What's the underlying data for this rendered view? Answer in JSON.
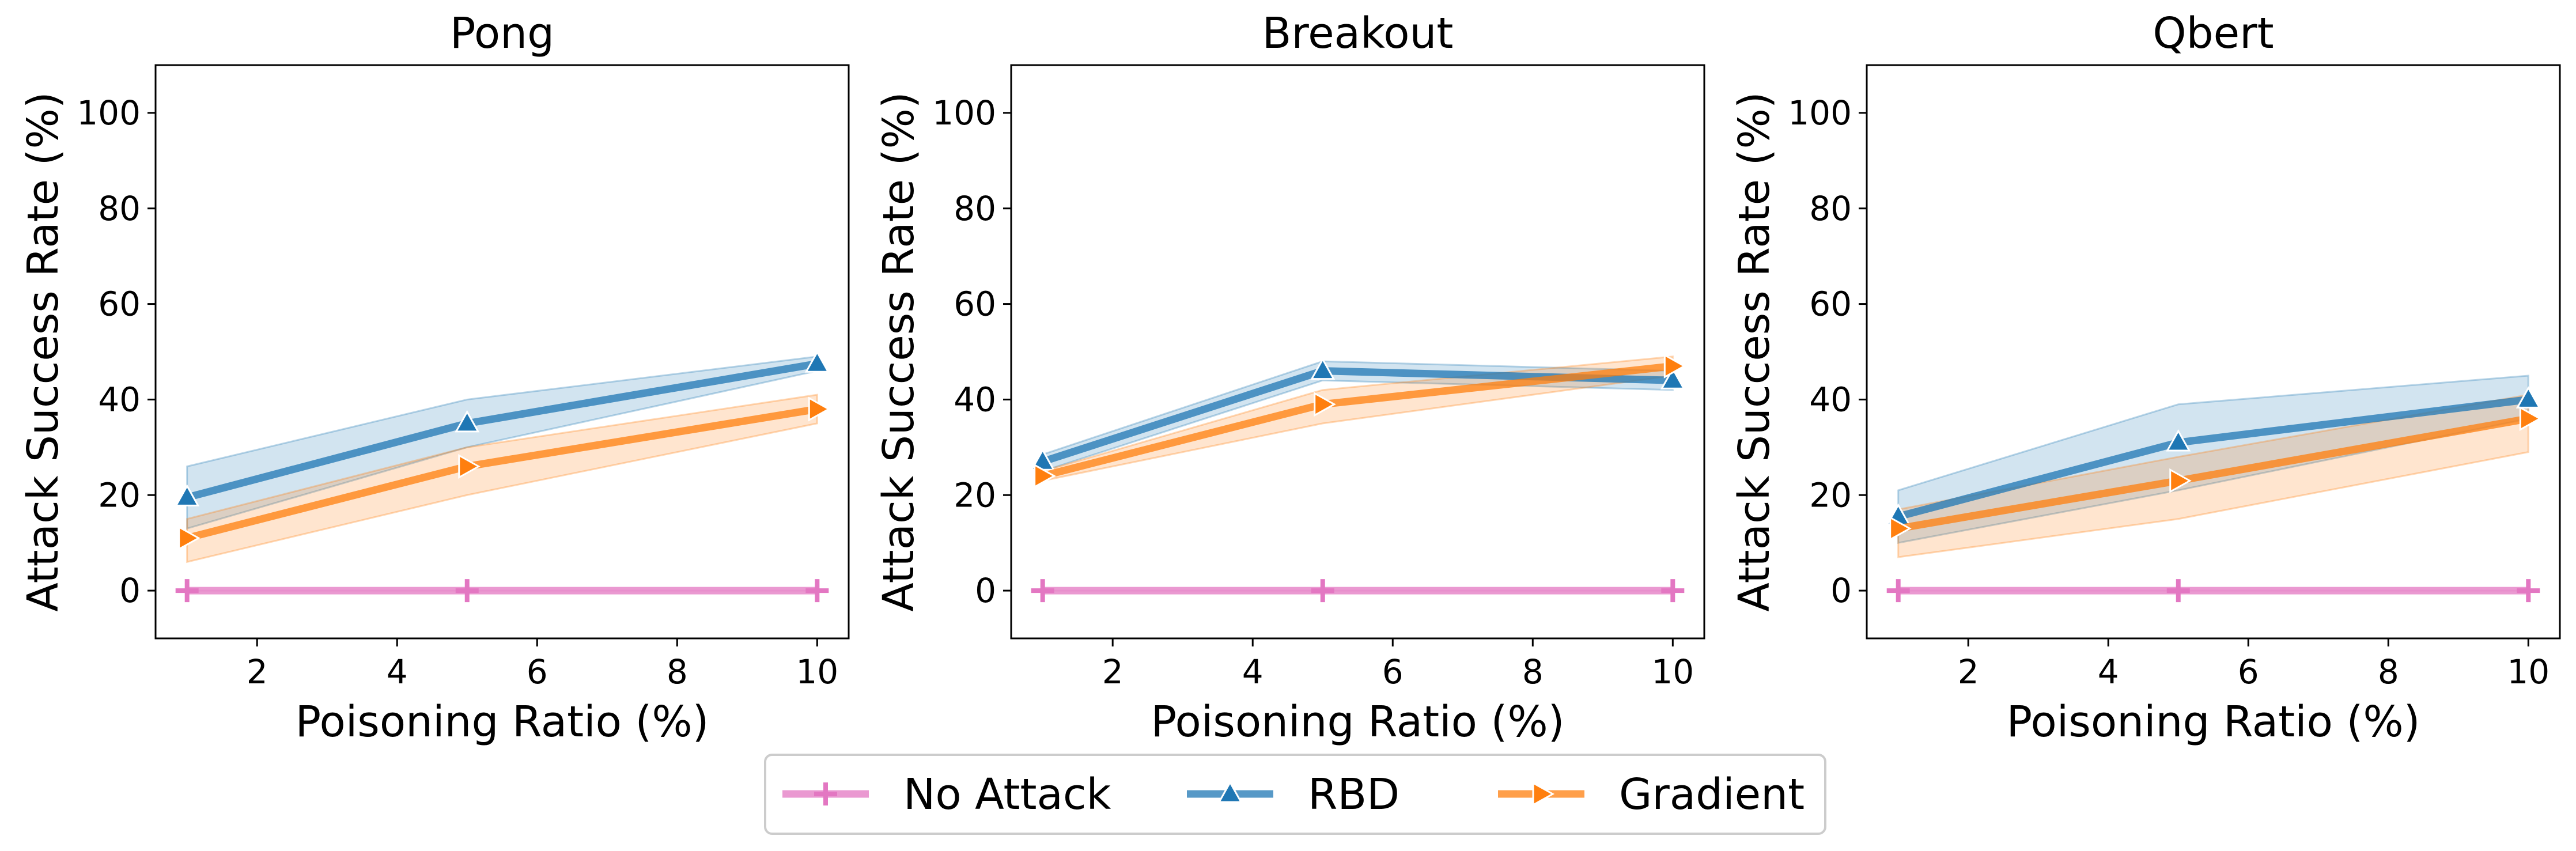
{
  "legend": {
    "placement": "bottom-center",
    "entries": [
      {
        "series_key": "no_attack",
        "label": "No Attack"
      },
      {
        "series_key": "rbd",
        "label": "RBD"
      },
      {
        "series_key": "gradient",
        "label": "Gradient"
      }
    ]
  },
  "series_styles": {
    "no_attack": {
      "color": "#e377c2",
      "marker": "plus"
    },
    "rbd": {
      "color": "#1f77b4",
      "marker": "triangle-up"
    },
    "gradient": {
      "color": "#ff7f0e",
      "marker": "triangle-right"
    }
  },
  "chart_data": [
    {
      "type": "line",
      "title": "Pong",
      "xlabel": "Poisoning Ratio (%)",
      "ylabel": "Attack Success Rate (%)",
      "xlim": [
        0.55,
        10.45
      ],
      "ylim": [
        -10,
        110
      ],
      "xticks": [
        2,
        4,
        6,
        8,
        10
      ],
      "yticks": [
        0,
        20,
        40,
        60,
        80,
        100
      ],
      "grid": false,
      "x": [
        1,
        5,
        10
      ],
      "series": [
        {
          "key": "no_attack",
          "name": "No Attack",
          "values": [
            0,
            0,
            0
          ],
          "lower": [
            0,
            0,
            0
          ],
          "upper": [
            0,
            0,
            0
          ]
        },
        {
          "key": "rbd",
          "name": "RBD",
          "values": [
            19.5,
            35,
            47.5
          ],
          "lower": [
            13,
            30,
            46
          ],
          "upper": [
            26,
            40,
            49
          ]
        },
        {
          "key": "gradient",
          "name": "Gradient",
          "values": [
            11,
            26,
            38
          ],
          "lower": [
            6,
            20,
            35
          ],
          "upper": [
            15,
            30,
            41
          ]
        }
      ]
    },
    {
      "type": "line",
      "title": "Breakout",
      "xlabel": "Poisoning Ratio (%)",
      "ylabel": "Attack Success Rate (%)",
      "xlim": [
        0.55,
        10.45
      ],
      "ylim": [
        -10,
        110
      ],
      "xticks": [
        2,
        4,
        6,
        8,
        10
      ],
      "yticks": [
        0,
        20,
        40,
        60,
        80,
        100
      ],
      "grid": false,
      "x": [
        1,
        5,
        10
      ],
      "series": [
        {
          "key": "no_attack",
          "name": "No Attack",
          "values": [
            0,
            0,
            0
          ],
          "lower": [
            0,
            0,
            0
          ],
          "upper": [
            0,
            0,
            0
          ]
        },
        {
          "key": "rbd",
          "name": "RBD",
          "values": [
            27,
            46,
            44
          ],
          "lower": [
            25,
            44,
            42
          ],
          "upper": [
            28.5,
            48,
            46
          ]
        },
        {
          "key": "gradient",
          "name": "Gradient",
          "values": [
            24,
            39,
            47
          ],
          "lower": [
            23,
            35,
            45
          ],
          "upper": [
            25,
            42,
            49
          ]
        }
      ]
    },
    {
      "type": "line",
      "title": "Qbert",
      "xlabel": "Poisoning Ratio (%)",
      "ylabel": "Attack Success Rate (%)",
      "xlim": [
        0.55,
        10.45
      ],
      "ylim": [
        -10,
        110
      ],
      "xticks": [
        2,
        4,
        6,
        8,
        10
      ],
      "yticks": [
        0,
        20,
        40,
        60,
        80,
        100
      ],
      "grid": false,
      "x": [
        1,
        5,
        10
      ],
      "series": [
        {
          "key": "no_attack",
          "name": "No Attack",
          "values": [
            0,
            0,
            0
          ],
          "lower": [
            0,
            0,
            0
          ],
          "upper": [
            0,
            0,
            0
          ]
        },
        {
          "key": "rbd",
          "name": "RBD",
          "values": [
            15.5,
            31,
            40
          ],
          "lower": [
            10,
            21,
            36
          ],
          "upper": [
            21,
            39,
            45
          ]
        },
        {
          "key": "gradient",
          "name": "Gradient",
          "values": [
            13,
            23,
            36
          ],
          "lower": [
            7,
            15,
            29
          ],
          "upper": [
            17,
            28,
            41
          ]
        }
      ]
    }
  ]
}
